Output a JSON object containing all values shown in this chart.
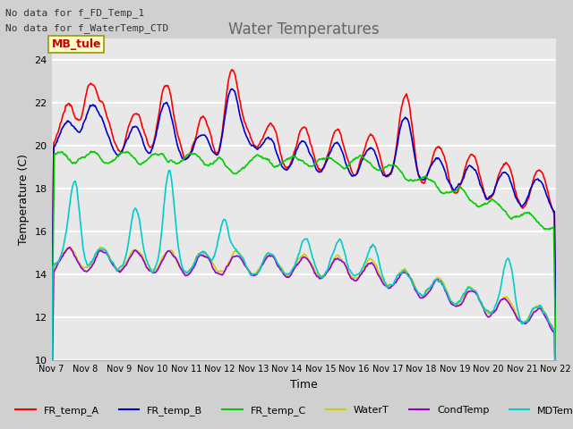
{
  "title": "Water Temperatures",
  "xlabel": "Time",
  "ylabel": "Temperature (C)",
  "ylim": [
    10,
    25
  ],
  "xlim": [
    0,
    15
  ],
  "annotations": [
    "No data for f_FD_Temp_1",
    "No data for f_WaterTemp_CTD"
  ],
  "mb_tule_label": "MB_tule",
  "x_tick_labels": [
    "Nov 7",
    "Nov 8",
    "Nov 9",
    "Nov 10",
    "Nov 11",
    "Nov 12",
    "Nov 13",
    "Nov 14",
    "Nov 15",
    "Nov 16",
    "Nov 17",
    "Nov 18",
    "Nov 19",
    "Nov 20",
    "Nov 21",
    "Nov 22"
  ],
  "yticks": [
    10,
    12,
    14,
    16,
    18,
    20,
    22,
    24
  ],
  "legend_entries": [
    {
      "label": "FR_temp_A",
      "color": "#ff0000"
    },
    {
      "label": "FR_temp_B",
      "color": "#0000cc"
    },
    {
      "label": "FR_temp_C",
      "color": "#00cc00"
    },
    {
      "label": "WaterT",
      "color": "#cccc00"
    },
    {
      "label": "CondTemp",
      "color": "#9900cc"
    },
    {
      "label": "MDTemp_A",
      "color": "#00cccc"
    }
  ],
  "fig_bg": "#d0d0d0",
  "plot_bg": "#e8e8e8",
  "grid_color": "#ffffff",
  "title_fontsize": 12,
  "axis_fontsize": 9,
  "tick_fontsize": 8
}
